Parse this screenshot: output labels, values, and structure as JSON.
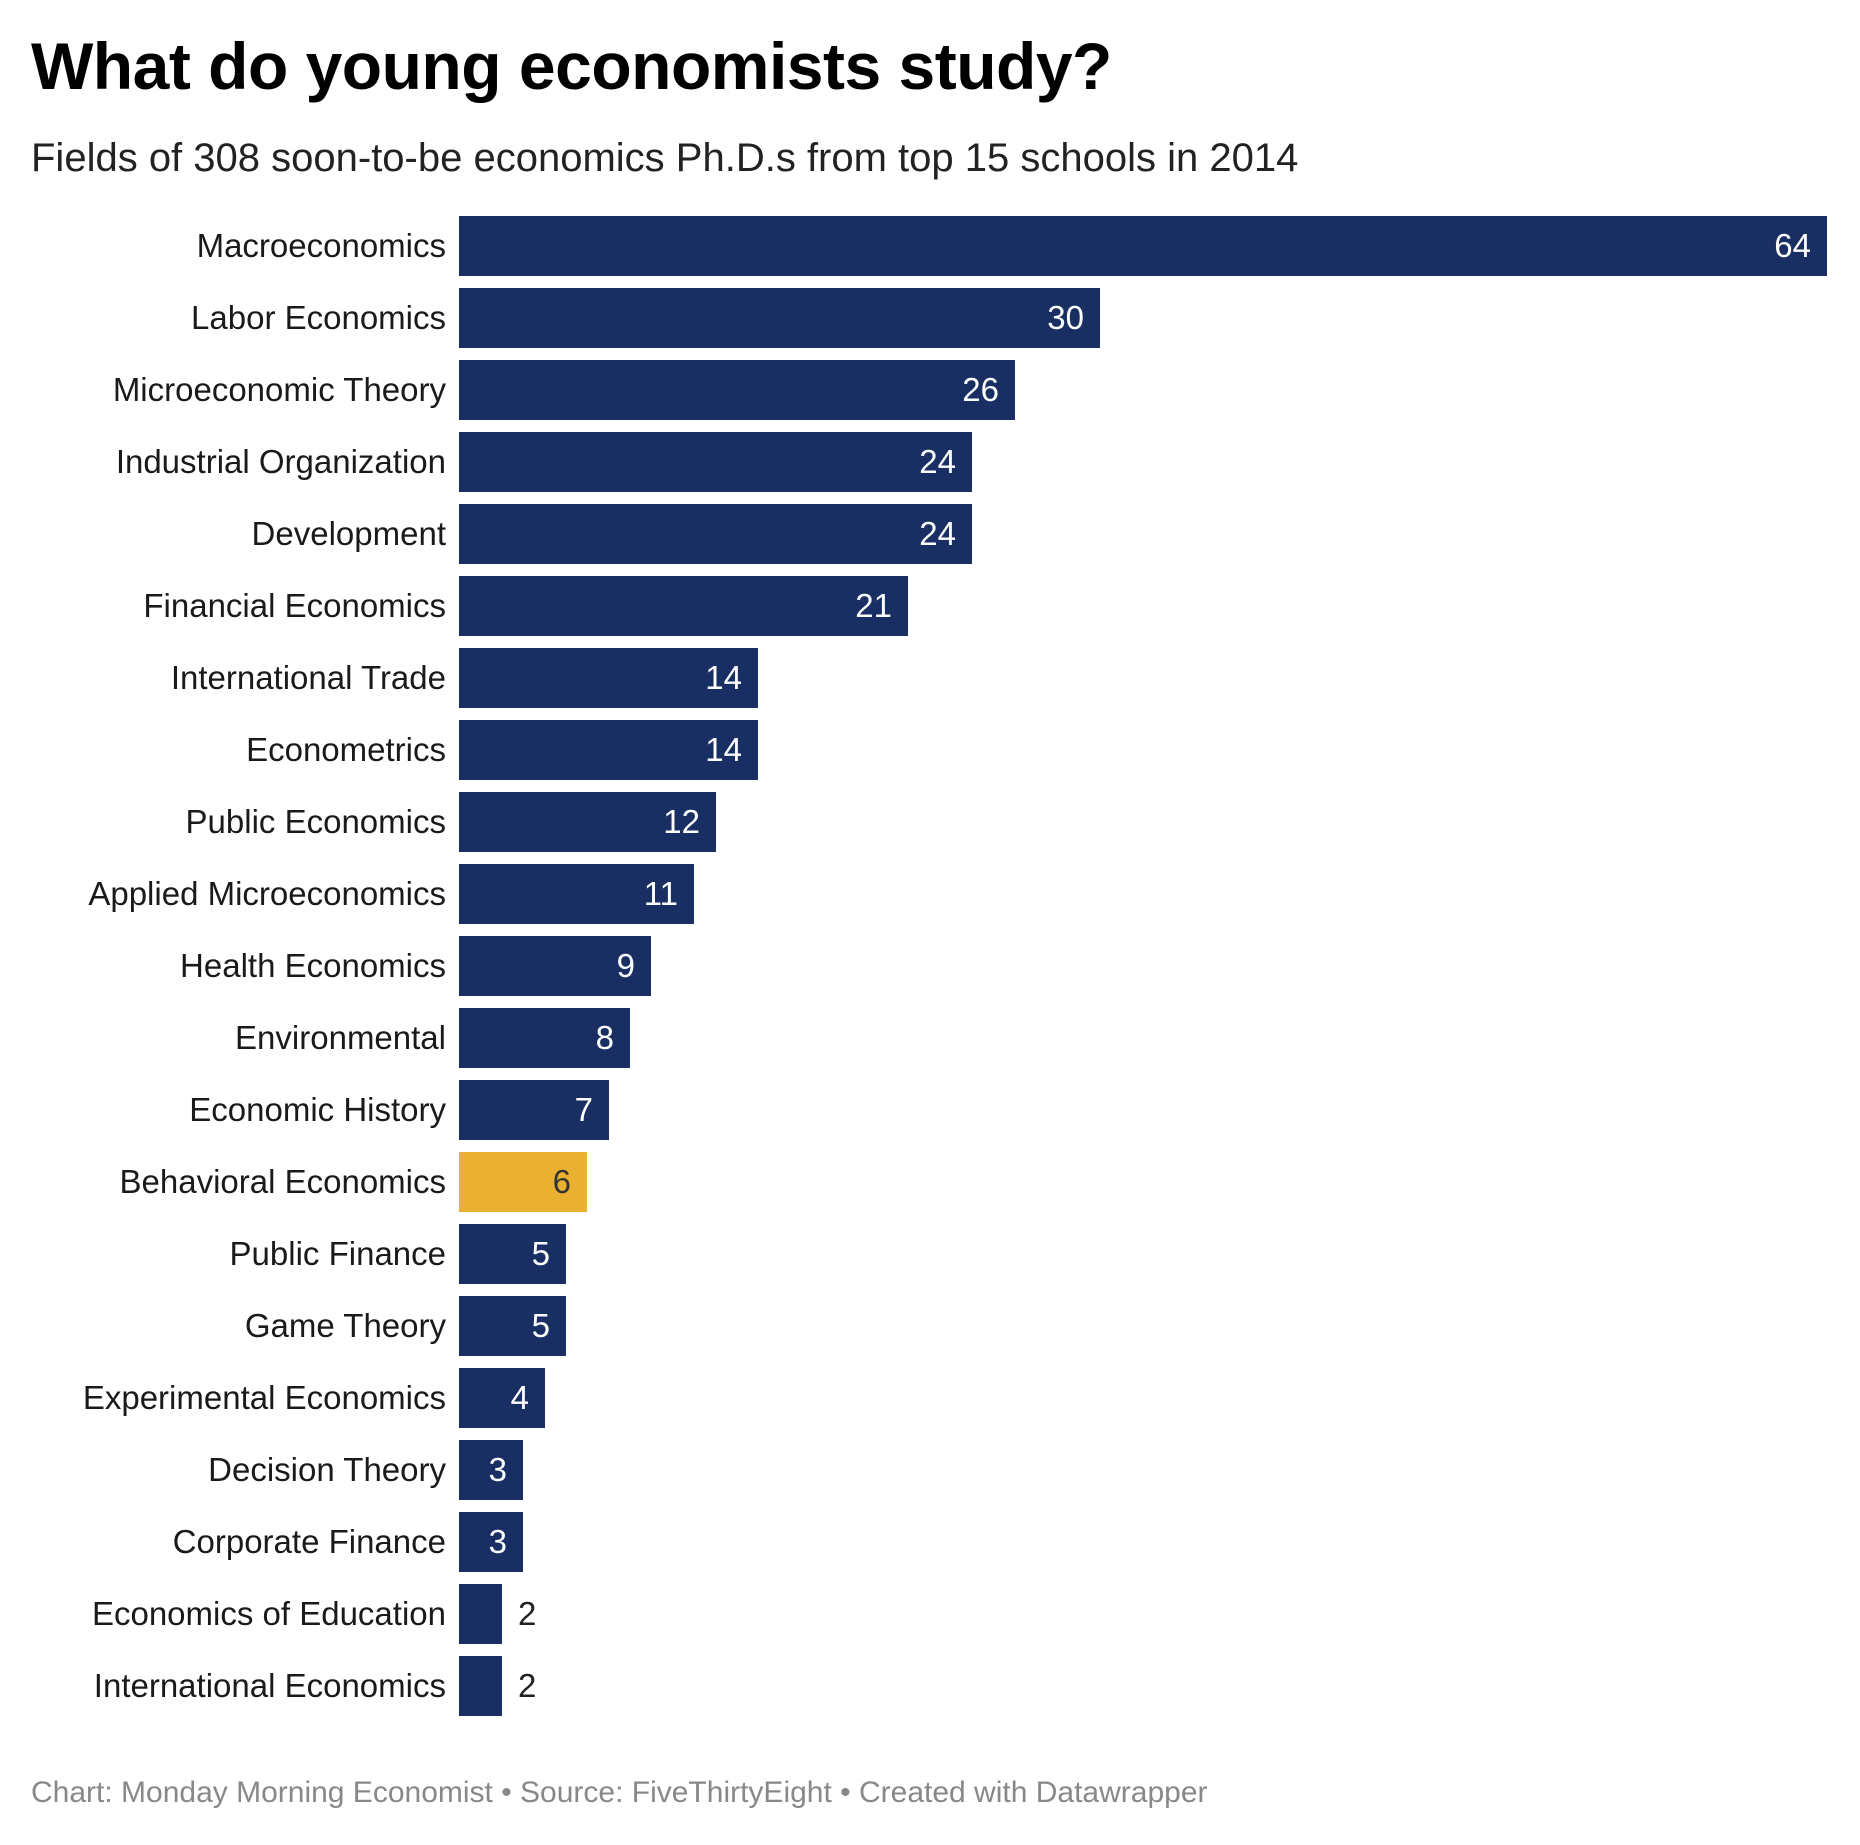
{
  "header": {
    "title": "What do young economists study?",
    "subtitle": "Fields of 308 soon-to-be economics Ph.D.s from top 15 schools in 2014"
  },
  "footer": {
    "text": "Chart: Monday Morning Economist • Source: FiveThirtyEight • Created with Datawrapper"
  },
  "colors": {
    "bar_default": "#192f63",
    "bar_highlight": "#e9b031"
  },
  "chart_data": {
    "type": "bar",
    "orientation": "horizontal",
    "title": "What do young economists study?",
    "subtitle": "Fields of 308 soon-to-be economics Ph.D.s from top 15 schools in 2014",
    "xlabel": "",
    "ylabel": "",
    "grid": false,
    "legend": null,
    "xlim": [
      0,
      64
    ],
    "highlight": "Behavioral Economics",
    "categories": [
      "Macroeconomics",
      "Labor Economics",
      "Microeconomic Theory",
      "Industrial Organization",
      "Development",
      "Financial Economics",
      "International Trade",
      "Econometrics",
      "Public Economics",
      "Applied Microeconomics",
      "Health Economics",
      "Environmental",
      "Economic History",
      "Behavioral Economics",
      "Public Finance",
      "Game Theory",
      "Experimental Economics",
      "Decision Theory",
      "Corporate Finance",
      "Economics of Education",
      "International Economics"
    ],
    "values": [
      64,
      30,
      26,
      24,
      24,
      21,
      14,
      14,
      12,
      11,
      9,
      8,
      7,
      6,
      5,
      5,
      4,
      3,
      3,
      2,
      2
    ],
    "source": "Chart: Monday Morning Economist • Source: FiveThirtyEight • Created with Datawrapper"
  }
}
